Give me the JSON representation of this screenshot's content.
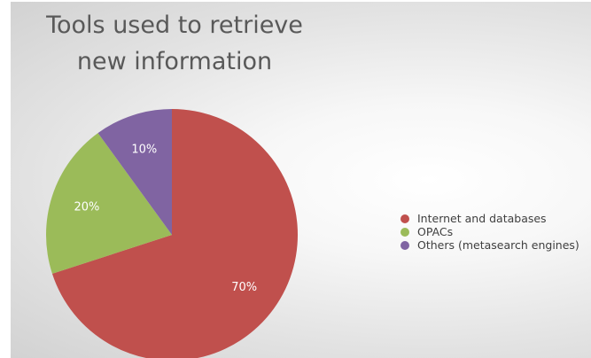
{
  "chart_data": {
    "type": "pie",
    "title": "Tools used to retrieve new information",
    "title_lines": [
      "Tools used to retrieve",
      "new information"
    ],
    "categories": [
      "Internet and databases",
      "OPACs",
      "Others (metasearch engines)"
    ],
    "values": [
      70,
      20,
      10
    ],
    "data_labels": [
      "70%",
      "20%",
      "10%"
    ],
    "colors": [
      "#c0504d",
      "#9bbb59",
      "#8064a2"
    ],
    "legend_position": "right",
    "start_angle": "12 o'clock",
    "direction": "clockwise"
  }
}
